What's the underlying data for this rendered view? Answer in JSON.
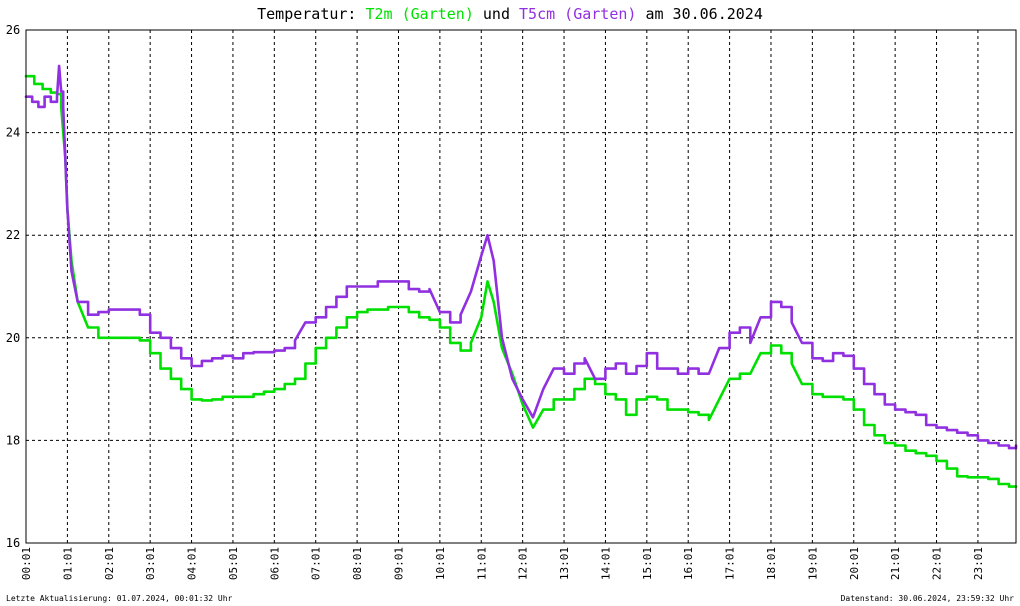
{
  "chart_data": {
    "type": "line",
    "title": {
      "prefix": "Temperatur: ",
      "series1_label": "T2m (Garten)",
      "connector": " und ",
      "series2_label": "T5cm (Garten)",
      "suffix": " am 30.06.2024"
    },
    "xlabel": "",
    "ylabel": "",
    "x_ticks": [
      "00:01",
      "01:01",
      "02:01",
      "03:01",
      "04:01",
      "05:01",
      "06:01",
      "07:01",
      "08:01",
      "09:01",
      "10:01",
      "11:01",
      "12:01",
      "13:01",
      "14:01",
      "15:01",
      "16:01",
      "17:01",
      "18:01",
      "19:01",
      "20:01",
      "21:01",
      "22:01",
      "23:01"
    ],
    "y_ticks": [
      "16",
      "18",
      "20",
      "22",
      "24",
      "26"
    ],
    "xlim": [
      0,
      23.92
    ],
    "ylim": [
      16,
      26
    ],
    "grid": true,
    "legend": "none",
    "colors": {
      "t2m": "#00e000",
      "t5cm": "#9030e0"
    },
    "series": [
      {
        "name": "T2m (Garten)",
        "color": "#00e000",
        "x": [
          0,
          0.2,
          0.4,
          0.6,
          0.75,
          0.85,
          0.95,
          1.0,
          1.1,
          1.25,
          1.5,
          1.75,
          2.0,
          2.5,
          2.75,
          3.0,
          3.25,
          3.5,
          3.75,
          4.0,
          4.25,
          4.5,
          4.75,
          5.0,
          5.25,
          5.5,
          5.75,
          6.0,
          6.25,
          6.5,
          6.75,
          7.0,
          7.25,
          7.5,
          7.75,
          8.0,
          8.25,
          8.5,
          8.75,
          9.0,
          9.25,
          9.5,
          9.75,
          10.0,
          10.25,
          10.5,
          10.75,
          11.0,
          11.15,
          11.3,
          11.5,
          11.75,
          12.0,
          12.25,
          12.5,
          12.75,
          13.0,
          13.25,
          13.5,
          13.75,
          14.0,
          14.25,
          14.5,
          14.75,
          15.0,
          15.25,
          15.5,
          15.75,
          16.0,
          16.25,
          16.5,
          16.75,
          17.0,
          17.25,
          17.5,
          17.75,
          18.0,
          18.25,
          18.5,
          18.75,
          19.0,
          19.25,
          19.5,
          19.75,
          20.0,
          20.25,
          20.5,
          20.75,
          21.0,
          21.25,
          21.5,
          21.75,
          22.0,
          22.25,
          22.5,
          22.75,
          23.0,
          23.25,
          23.5,
          23.75,
          23.92
        ],
        "y": [
          25.1,
          24.95,
          24.85,
          24.78,
          24.75,
          24.5,
          23.5,
          22.5,
          21.5,
          20.7,
          20.2,
          20.0,
          20.0,
          20.0,
          19.95,
          19.7,
          19.4,
          19.2,
          19.0,
          18.8,
          18.78,
          18.8,
          18.85,
          18.85,
          18.85,
          18.9,
          18.95,
          19.0,
          19.1,
          19.2,
          19.5,
          19.8,
          20.0,
          20.2,
          20.4,
          20.5,
          20.55,
          20.55,
          20.6,
          20.6,
          20.5,
          20.4,
          20.35,
          20.2,
          19.9,
          19.75,
          19.9,
          20.4,
          21.1,
          20.7,
          19.8,
          19.3,
          18.7,
          18.25,
          18.6,
          18.8,
          18.8,
          19.0,
          19.2,
          19.1,
          18.9,
          18.8,
          18.5,
          18.8,
          18.85,
          18.8,
          18.6,
          18.6,
          18.55,
          18.5,
          18.4,
          18.8,
          19.2,
          19.3,
          19.3,
          19.7,
          19.85,
          19.7,
          19.5,
          19.1,
          18.9,
          18.85,
          18.85,
          18.8,
          18.6,
          18.3,
          18.1,
          17.95,
          17.9,
          17.8,
          17.75,
          17.7,
          17.6,
          17.45,
          17.3,
          17.28,
          17.28,
          17.25,
          17.15,
          17.1,
          17.1
        ]
      },
      {
        "name": "T5cm (Garten)",
        "color": "#9030e0",
        "x": [
          0,
          0.15,
          0.3,
          0.45,
          0.6,
          0.75,
          0.8,
          0.85,
          0.9,
          1.0,
          1.1,
          1.25,
          1.5,
          1.75,
          2.0,
          2.5,
          2.75,
          3.0,
          3.25,
          3.5,
          3.75,
          4.0,
          4.25,
          4.5,
          4.75,
          5.0,
          5.25,
          5.5,
          5.75,
          6.0,
          6.25,
          6.5,
          6.75,
          7.0,
          7.25,
          7.5,
          7.75,
          8.0,
          8.25,
          8.5,
          8.75,
          9.0,
          9.25,
          9.5,
          9.75,
          10.0,
          10.25,
          10.5,
          10.75,
          11.0,
          11.15,
          11.3,
          11.5,
          11.75,
          12.0,
          12.25,
          12.5,
          12.75,
          13.0,
          13.25,
          13.5,
          13.75,
          14.0,
          14.25,
          14.5,
          14.75,
          15.0,
          15.25,
          15.5,
          15.75,
          16.0,
          16.25,
          16.5,
          16.75,
          17.0,
          17.25,
          17.5,
          17.75,
          18.0,
          18.25,
          18.5,
          18.75,
          19.0,
          19.25,
          19.5,
          19.75,
          20.0,
          20.25,
          20.5,
          20.75,
          21.0,
          21.25,
          21.5,
          21.75,
          22.0,
          22.25,
          22.5,
          22.75,
          23.0,
          23.25,
          23.5,
          23.75,
          23.92
        ],
        "y": [
          24.7,
          24.6,
          24.5,
          24.7,
          24.6,
          24.7,
          25.3,
          24.8,
          24.5,
          22.5,
          21.3,
          20.7,
          20.45,
          20.5,
          20.55,
          20.55,
          20.45,
          20.1,
          20.0,
          19.8,
          19.6,
          19.45,
          19.55,
          19.6,
          19.65,
          19.6,
          19.7,
          19.72,
          19.72,
          19.75,
          19.8,
          19.95,
          20.3,
          20.4,
          20.6,
          20.8,
          21.0,
          21.0,
          21.0,
          21.1,
          21.1,
          21.1,
          20.95,
          20.9,
          20.95,
          20.5,
          20.3,
          20.45,
          20.9,
          21.6,
          22.0,
          21.5,
          20.0,
          19.2,
          18.8,
          18.45,
          19.0,
          19.4,
          19.3,
          19.5,
          19.6,
          19.2,
          19.4,
          19.5,
          19.3,
          19.45,
          19.7,
          19.4,
          19.4,
          19.3,
          19.4,
          19.3,
          19.3,
          19.8,
          20.1,
          20.2,
          19.9,
          20.4,
          20.7,
          20.6,
          20.3,
          19.9,
          19.6,
          19.55,
          19.7,
          19.65,
          19.4,
          19.1,
          18.9,
          18.7,
          18.6,
          18.55,
          18.5,
          18.3,
          18.25,
          18.2,
          18.15,
          18.1,
          18.0,
          17.95,
          17.9,
          17.85,
          17.9
        ]
      }
    ]
  },
  "footer": {
    "left": "Letzte Aktualisierung: 01.07.2024, 00:01:32 Uhr",
    "right": "Datenstand: 30.06.2024, 23:59:32 Uhr"
  }
}
